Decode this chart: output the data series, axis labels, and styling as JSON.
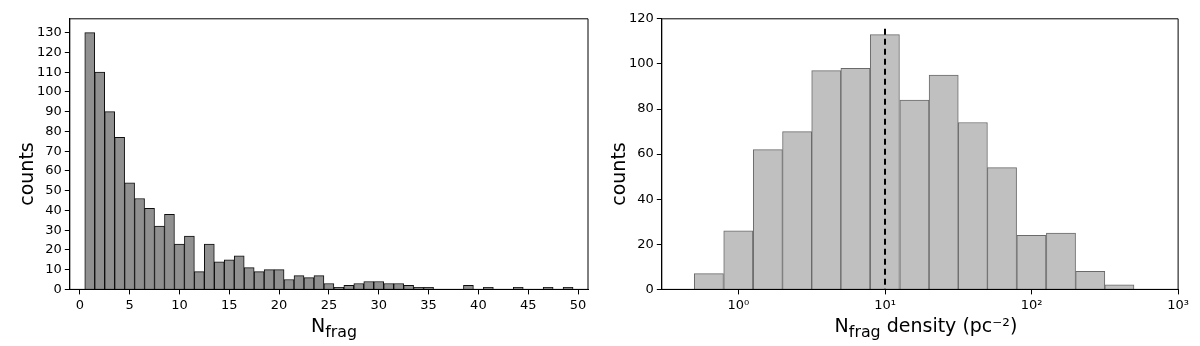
{
  "chart_data": [
    {
      "type": "histogram",
      "xlabel": "N$_{frag}$",
      "ylabel": "counts",
      "color": "#909090",
      "bins": [
        0.5,
        1.5,
        2.5,
        3.5,
        4.5,
        5.5,
        6.5,
        7.5,
        8.5,
        9.5,
        10.5,
        11.5,
        12.5,
        13.5,
        14.5,
        15.5,
        16.5,
        17.5,
        18.5,
        19.5,
        20.5,
        21.5,
        22.5,
        23.5,
        24.5,
        25.5,
        26.5,
        27.5,
        28.5,
        29.5,
        30.5,
        31.5,
        32.5,
        33.5,
        34.5,
        35.5,
        36.5,
        37.5,
        38.5,
        39.5,
        40.5,
        41.5,
        42.5,
        43.5,
        44.5,
        45.5,
        46.5,
        47.5,
        48.5,
        49.5
      ],
      "values": [
        130,
        110,
        90,
        77,
        54,
        46,
        41,
        32,
        38,
        23,
        27,
        9,
        23,
        14,
        15,
        17,
        11,
        9,
        10,
        10,
        5,
        7,
        6,
        7,
        3,
        1,
        2,
        3,
        4,
        4,
        3,
        3,
        2,
        1,
        1,
        0,
        0,
        0,
        2,
        0,
        1,
        0,
        0,
        1,
        0,
        0,
        1,
        0,
        1
      ],
      "xlim": [
        -1,
        51
      ],
      "xticks": [
        0,
        5,
        10,
        15,
        20,
        25,
        30,
        35,
        40,
        45,
        50
      ],
      "ylim": [
        0,
        137
      ],
      "yticks": [
        0,
        10,
        20,
        30,
        40,
        50,
        60,
        70,
        80,
        90,
        100,
        110,
        120,
        130
      ],
      "grid": false,
      "legend": false
    },
    {
      "type": "histogram",
      "xlabel": "N$_{frag}$ density (pc⁻²)",
      "ylabel": "counts",
      "color": "#c0c0c0",
      "log": "x",
      "bins": [
        0.5,
        0.79,
        1.26,
        2.0,
        3.16,
        5.0,
        7.9,
        12.6,
        20,
        31.6,
        50,
        79,
        126,
        200,
        316,
        500
      ],
      "values": [
        7,
        26,
        62,
        70,
        97,
        98,
        113,
        84,
        95,
        74,
        54,
        24,
        25,
        8,
        2
      ],
      "xlim": [
        0.3,
        1000
      ],
      "xticks": [
        {
          "value": 1,
          "label": "10⁰"
        },
        {
          "value": 10,
          "label": "10¹"
        },
        {
          "value": 100,
          "label": "10²"
        },
        {
          "value": 1000,
          "label": "10³"
        }
      ],
      "ylim": [
        0,
        120
      ],
      "yticks": [
        0,
        20,
        40,
        60,
        80,
        100,
        120
      ],
      "ref_lines": [
        {
          "axis": "x",
          "value": 10,
          "color": "#000000",
          "line_style": "dashed"
        }
      ],
      "grid": false,
      "legend": false
    }
  ]
}
